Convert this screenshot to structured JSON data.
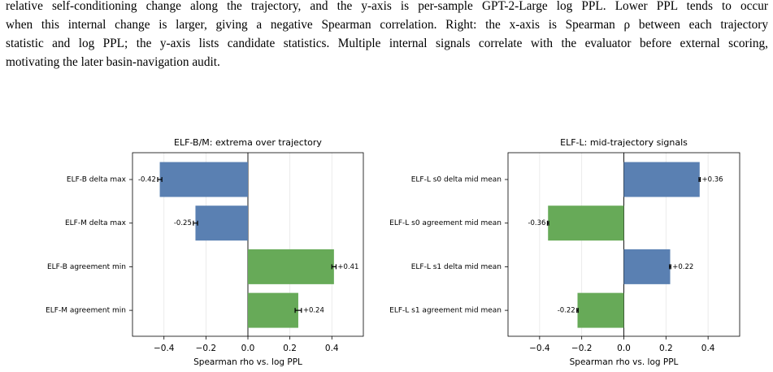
{
  "caption": {
    "lines": [
      "relative self-conditioning change along the trajectory, and the y-axis is per-sample GPT-2-Large log PPL. Lower PPL tends to occur",
      "when this internal change is larger, giving a negative Spearman correlation. Right: the x-axis is Spearman ρ between each trajectory",
      "statistic and log PPL; the y-axis lists candidate statistics. Multiple internal signals correlate with the evaluator before external scoring,",
      "motivating the later basin-navigation audit."
    ]
  },
  "chart_data": [
    {
      "type": "barh",
      "title": "ELF-B/M: extrema over trajectory",
      "xlabel": "Spearman rho vs. log PPL",
      "categories": [
        "ELF-B  delta max",
        "ELF-M  delta max",
        "ELF-B  agreement min",
        "ELF-M  agreement min"
      ],
      "values": [
        -0.42,
        -0.25,
        0.41,
        0.24
      ],
      "value_labels": [
        "-0.42",
        "-0.25",
        "+0.41",
        "+0.24"
      ],
      "errors": [
        0.01,
        0.01,
        0.01,
        0.015
      ],
      "colors": [
        "#5a80b2",
        "#5a80b2",
        "#67aa58",
        "#67aa58"
      ],
      "xlim": [
        -0.55,
        0.55
      ],
      "xticks": [
        {
          "value": -0.4,
          "label": "−0.4"
        },
        {
          "value": -0.2,
          "label": "−0.2"
        },
        {
          "value": 0,
          "label": "0.0"
        },
        0.2,
        0.4
      ],
      "grid": true
    },
    {
      "type": "barh",
      "title": "ELF-L: mid-trajectory signals",
      "xlabel": "Spearman rho vs. log PPL",
      "categories": [
        "ELF-L s0  delta mid mean",
        "ELF-L s0  agreement mid mean",
        "ELF-L s1  delta mid mean",
        "ELF-L s1  agreement mid mean"
      ],
      "values": [
        0.36,
        -0.36,
        0.22,
        -0.22
      ],
      "value_labels": [
        "+0.36",
        "-0.36",
        "+0.22",
        "-0.22"
      ],
      "errors": [
        0.003,
        0.003,
        0.003,
        0.003
      ],
      "colors": [
        "#5a80b2",
        "#67aa58",
        "#5a80b2",
        "#67aa58"
      ],
      "xlim": [
        -0.55,
        0.55
      ],
      "xticks": [
        {
          "value": -0.4,
          "label": "−0.4"
        },
        {
          "value": -0.2,
          "label": "−0.2"
        },
        {
          "value": 0,
          "label": "0.0"
        },
        0.2,
        0.4
      ],
      "grid": true
    }
  ]
}
